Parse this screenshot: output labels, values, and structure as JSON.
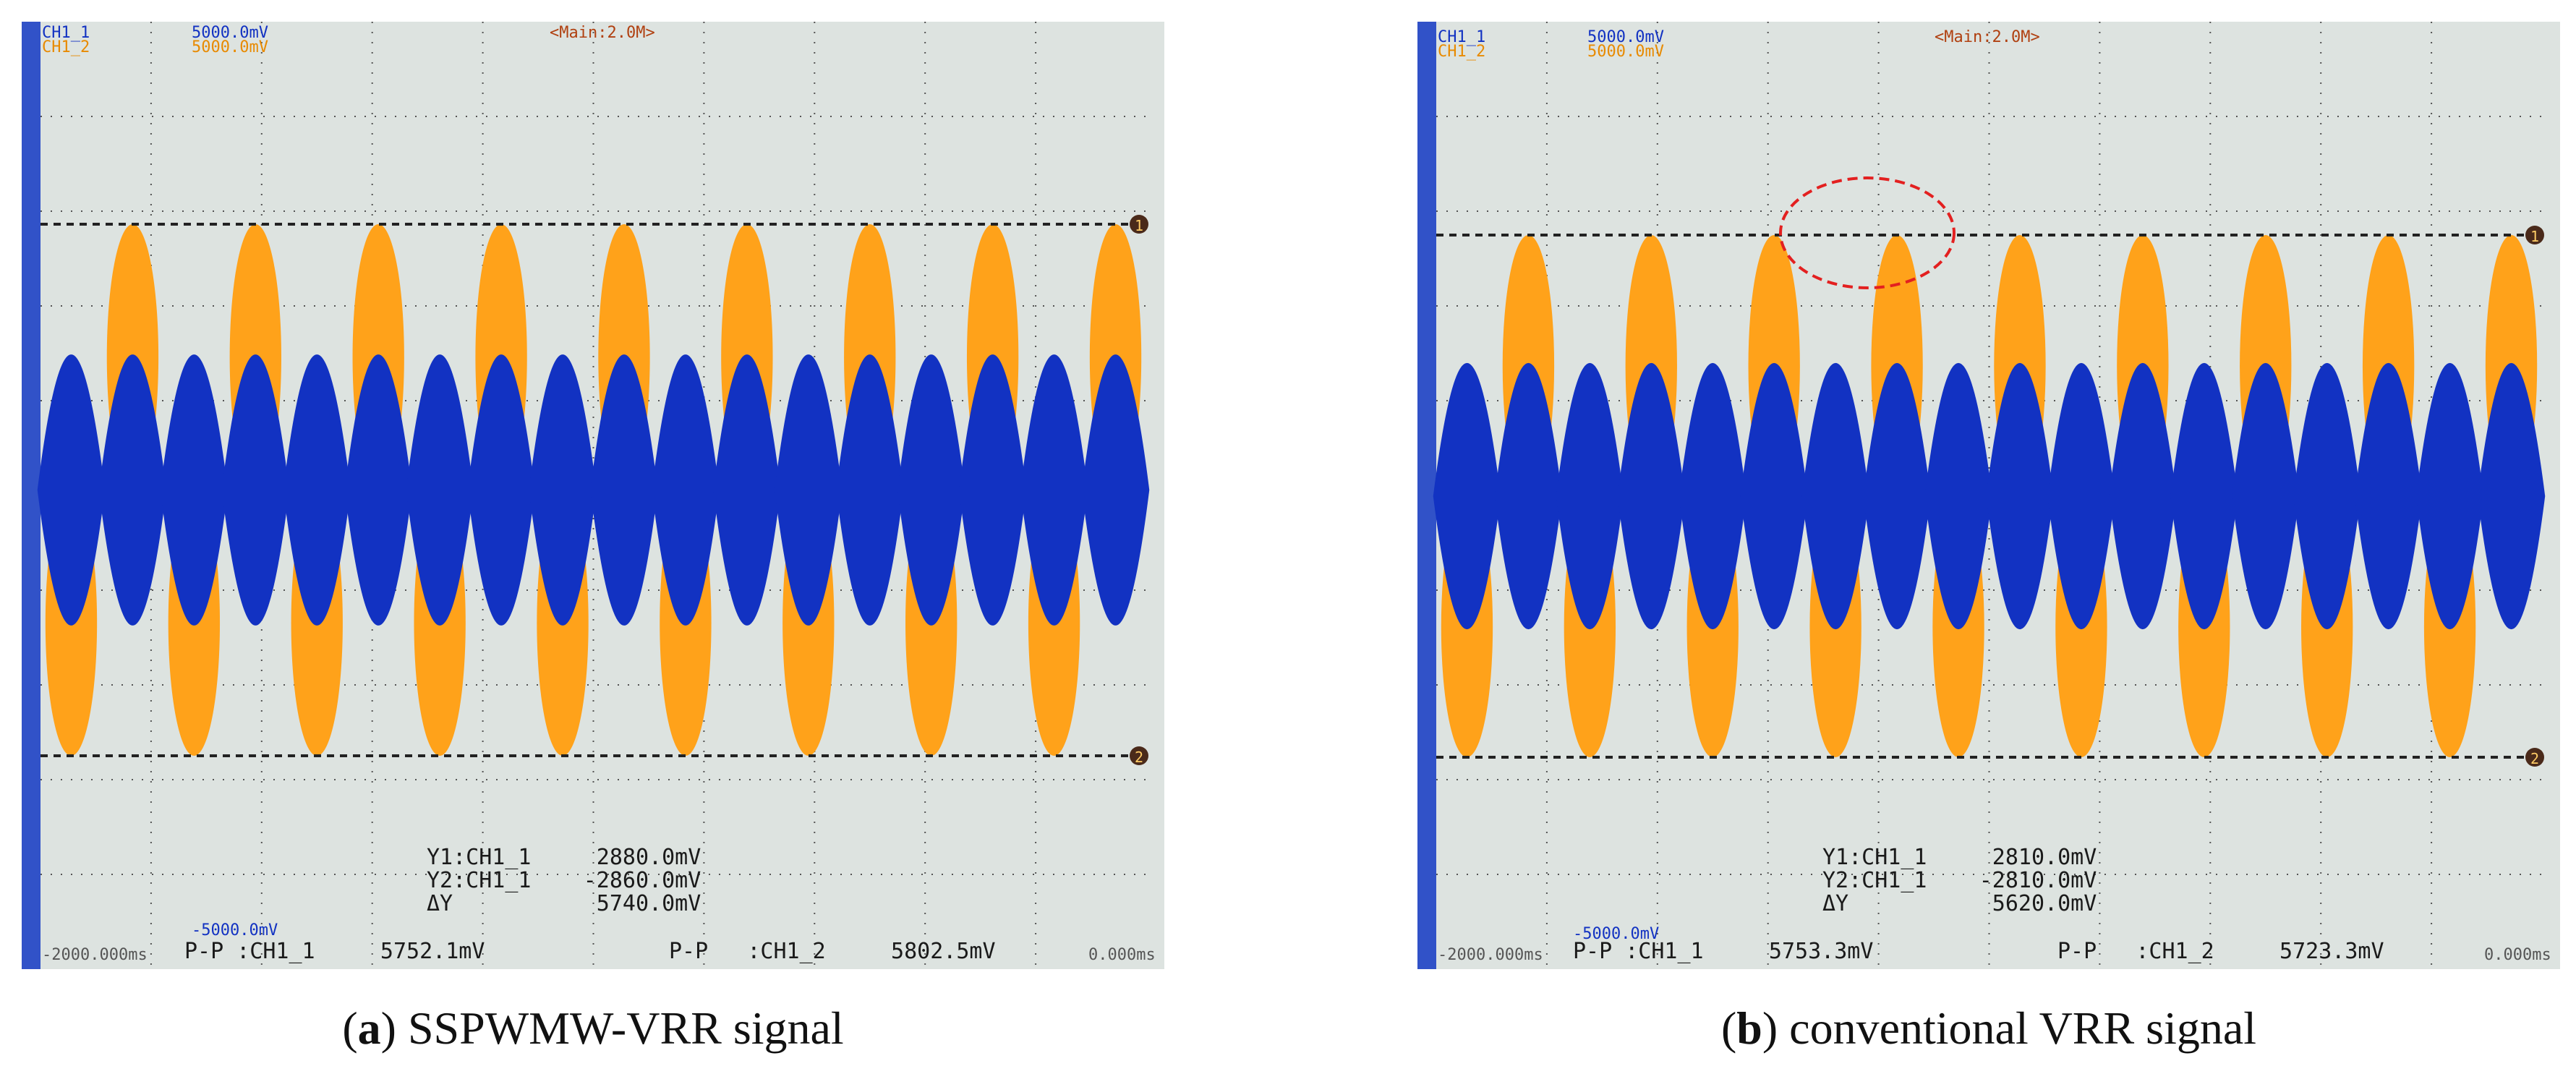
{
  "colors": {
    "ch1": "#1232c2",
    "ch2": "#ffa21a",
    "screen": "#dde3e0",
    "left_bar": "#3152c8",
    "text": "#1a1a1a",
    "highlight": "#e32020"
  },
  "panels": [
    {
      "id": "a",
      "label": "a",
      "caption_text": "SSPWMW-VRR signal",
      "ch1_label": "CH1_1",
      "ch1_scale": "5000.0mV",
      "ch2_label": "CH1_2",
      "ch2_scale": "5000.0mV",
      "timebase": "<Main:2.0M>",
      "cursor1_marker": "1",
      "cursor2_marker": "2",
      "bottom_scale": "-5000.0mV",
      "t_start": "-2000.000ms",
      "t_end": "0.000ms",
      "y1": "Y1:CH1_1     2880.0mV",
      "y2": "Y2:CH1_1    -2860.0mV",
      "dy": "ΔY           5740.0mV",
      "pp1": "P-P :CH1_1     5752.1mV",
      "pp2": "P-P   :CH1_2     5802.5mV",
      "lobes": 18,
      "highlight": false
    },
    {
      "id": "b",
      "label": "b",
      "caption_text": "conventional VRR signal",
      "ch1_label": "CH1_1",
      "ch1_scale": "5000.0mV",
      "ch2_label": "CH1_2",
      "ch2_scale": "5000.0mV",
      "timebase": "<Main:2.0M>",
      "cursor1_marker": "1",
      "cursor2_marker": "2",
      "bottom_scale": "-5000.0mV",
      "t_start": "-2000.000ms",
      "t_end": "0.000ms",
      "y1": "Y1:CH1_1     2810.0mV",
      "y2": "Y2:CH1_1    -2810.0mV",
      "dy": "ΔY           5620.0mV",
      "pp1": "P-P :CH1_1     5753.3mV",
      "pp2": "P-P   :CH1_2     5723.3mV",
      "lobes": 18,
      "highlight": true
    }
  ]
}
